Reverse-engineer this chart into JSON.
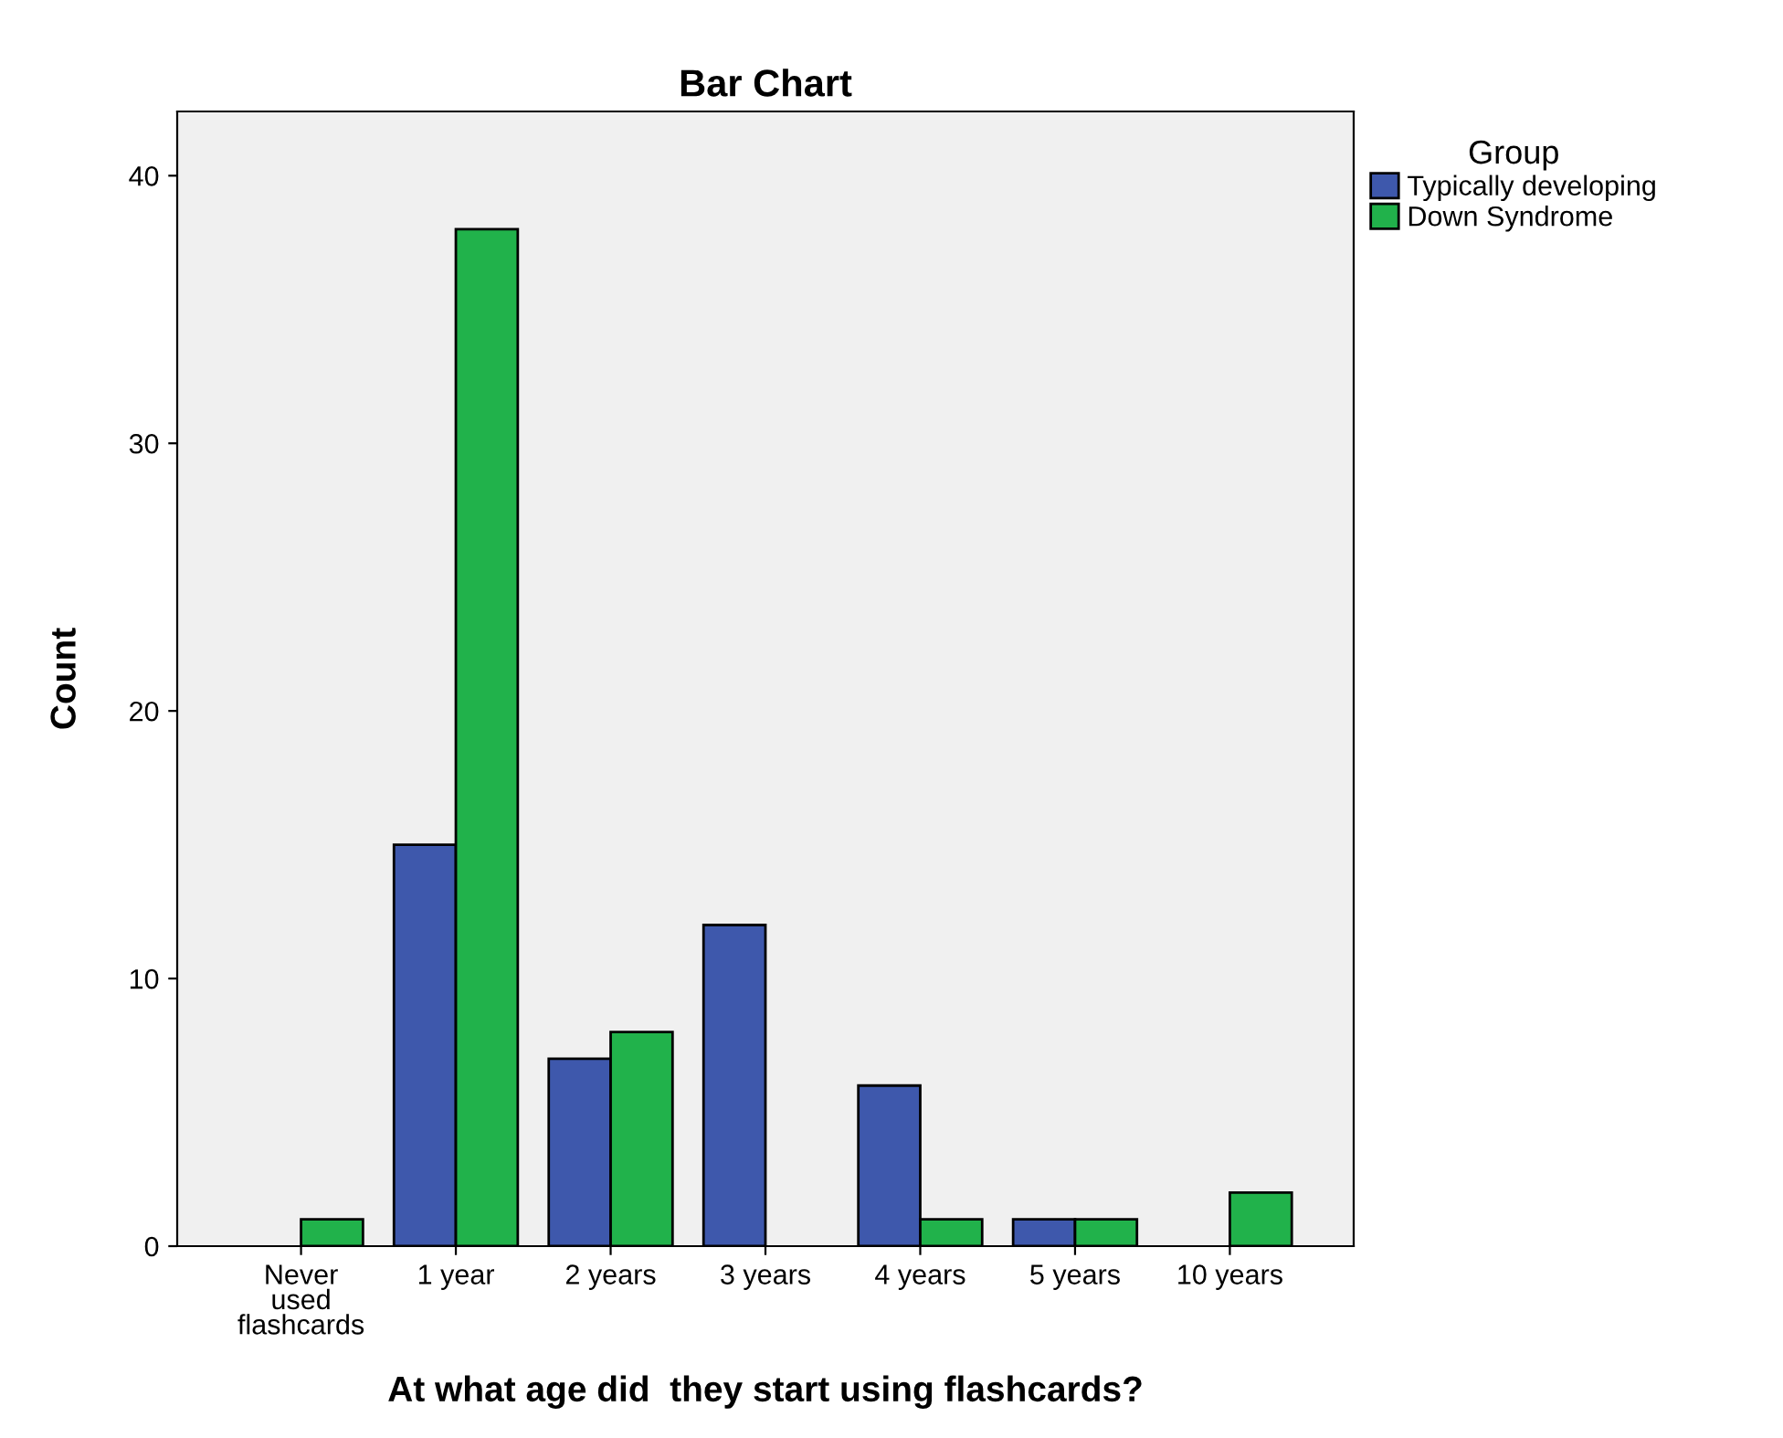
{
  "chart_data": {
    "type": "bar",
    "title": "Bar Chart",
    "xlabel": "At what age did  they start using flashcards?",
    "ylabel": "Count",
    "legend_title": "Group",
    "categories": [
      "Never\nused\nflashcards",
      "1 year",
      "2 years",
      "3 years",
      "4 years",
      "5 years",
      "10 years"
    ],
    "series": [
      {
        "name": "Typically developing",
        "color": "#3e58ac",
        "values": [
          null,
          15,
          7,
          12,
          6,
          1,
          null
        ]
      },
      {
        "name": "Down Syndrome",
        "color": "#21b24b",
        "values": [
          1,
          38,
          8,
          null,
          1,
          1,
          2
        ]
      }
    ],
    "ylim": [
      0,
      42.4
    ],
    "yticks": [
      0,
      10,
      20,
      30,
      40
    ],
    "grid": false,
    "legend": "top right"
  }
}
